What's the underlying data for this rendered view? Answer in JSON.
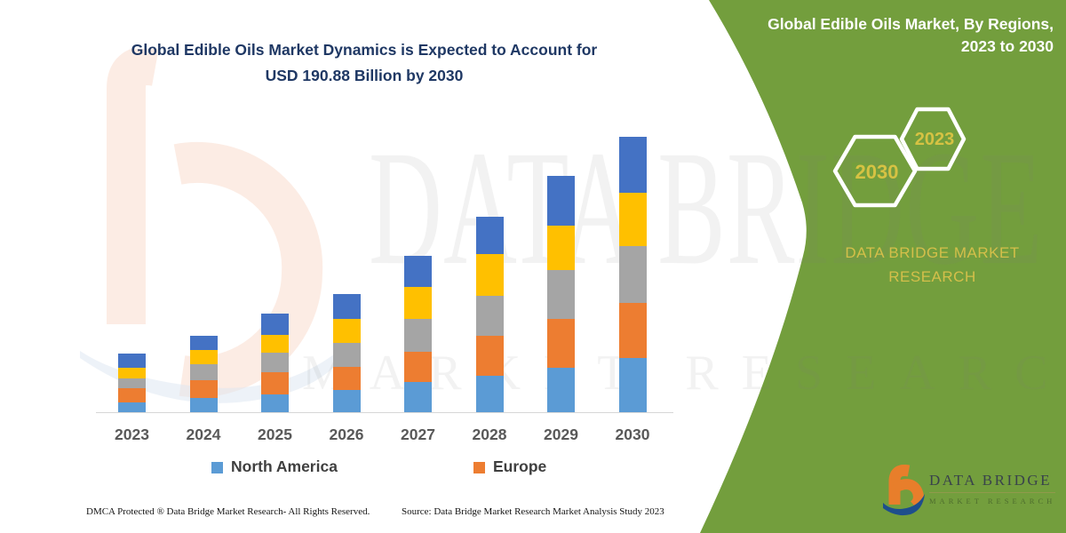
{
  "title": {
    "line1": "Global Edible Oils Market Dynamics is Expected to Account for",
    "line2": "USD 190.88 Billion by 2030",
    "color": "#1f3864"
  },
  "panel": {
    "bg_color": "#739e3d",
    "heading_line1": "Global Edible Oils Market, By Regions,",
    "heading_line2": "2023 to 2030",
    "hex_back_label": "2030",
    "hex_front_label": "2023",
    "brand_line1": "DATA BRIDGE MARKET",
    "brand_line2": "RESEARCH",
    "accent_text_color": "#d4bf4a"
  },
  "legend": [
    {
      "label": "North America",
      "color": "#5b9bd5"
    },
    {
      "label": "Europe",
      "color": "#ed7d31"
    }
  ],
  "logo": {
    "name": "DATA BRIDGE",
    "sub": "MARKET RESEARCH",
    "orange": "#e87e2b",
    "blue": "#1e4e8c"
  },
  "footer": {
    "left": "DMCA Protected ® Data Bridge Market Research-  All Rights Reserved.",
    "source": "Source: Data Bridge Market Research  Market Analysis Study 2023"
  },
  "watermark": {
    "line1": "DATA BRIDGE",
    "line2": "MARKET RESEARCH"
  },
  "chart_data": {
    "type": "bar",
    "stacked": true,
    "title": "Global Edible Oils Market Dynamics is Expected to Account for USD 190.88 Billion by 2030",
    "categories": [
      "2023",
      "2024",
      "2025",
      "2026",
      "2027",
      "2028",
      "2029",
      "2030"
    ],
    "unit": "USD billion (estimated from bar heights; no y-axis shown; 2030 total anchored to 190.88)",
    "series": [
      {
        "name": "North America",
        "color": "#5b9bd5",
        "values": [
          7.2,
          10.6,
          12.7,
          15.8,
          21.3,
          26.0,
          31.1,
          37.9
        ]
      },
      {
        "name": "Europe",
        "color": "#ed7d31",
        "values": [
          9.8,
          11.8,
          15.3,
          16.0,
          21.1,
          27.2,
          33.8,
          38.4
        ]
      },
      {
        "name": "unlabeled-gray",
        "color": "#a5a5a5",
        "values": [
          6.9,
          11.2,
          13.5,
          16.4,
          22.5,
          28.0,
          33.8,
          38.9
        ]
      },
      {
        "name": "unlabeled-yellow",
        "color": "#ffc000",
        "values": [
          7.2,
          9.8,
          12.3,
          16.8,
          22.5,
          28.7,
          30.7,
          37.2
        ]
      },
      {
        "name": "unlabeled-darkblue",
        "color": "#4472c4",
        "values": [
          9.8,
          10.3,
          14.7,
          17.0,
          21.5,
          25.6,
          34.4,
          38.5
        ]
      }
    ],
    "totals_estimated": [
      41.0,
      53.8,
      68.6,
      81.9,
      108.9,
      135.5,
      163.7,
      190.88
    ],
    "legend_entries_visible": [
      "North America",
      "Europe"
    ],
    "axes": {
      "x_labels_shown": true,
      "y_axis_shown": false,
      "gridlines": false
    },
    "legend_position": "bottom"
  }
}
